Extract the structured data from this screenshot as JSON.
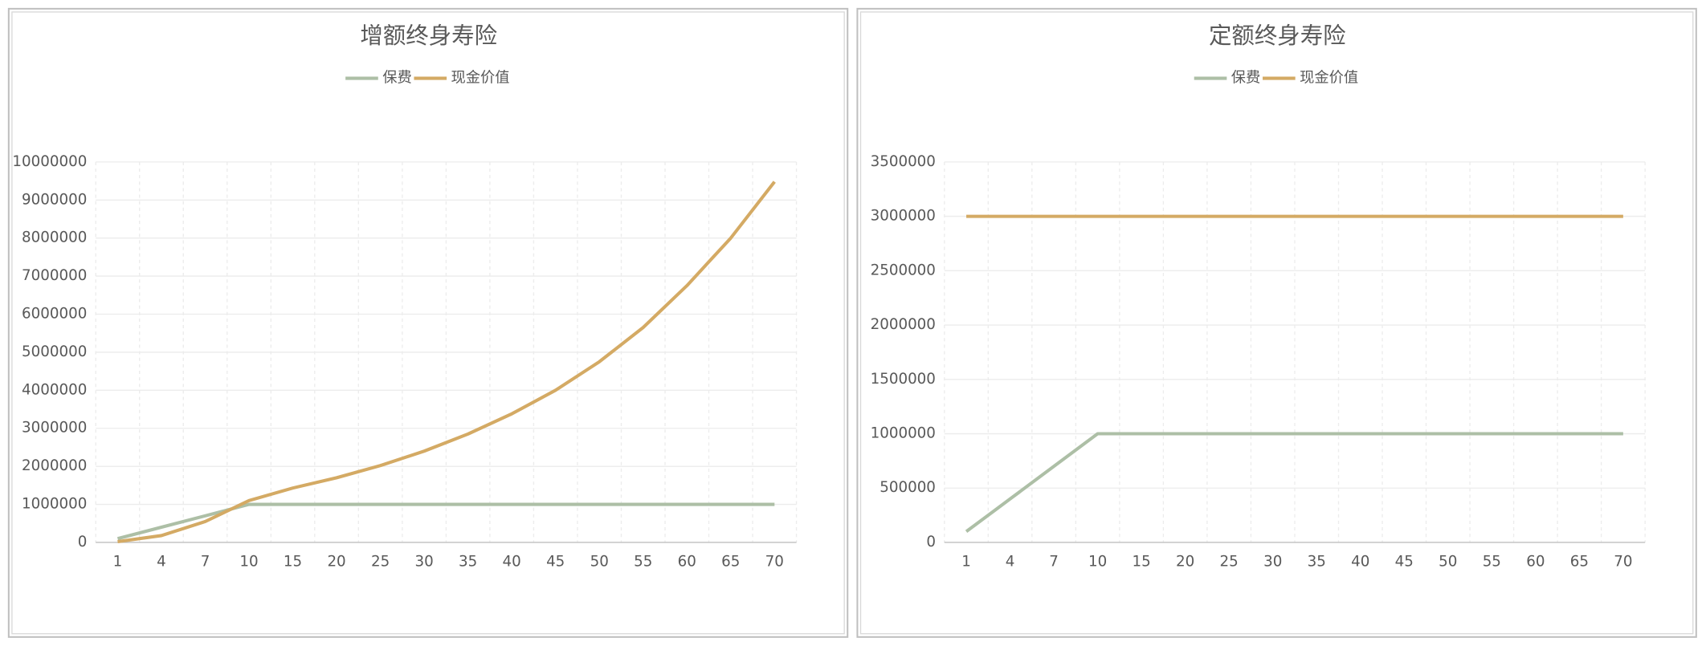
{
  "chart_data": [
    {
      "type": "line",
      "title": "增额终身寿险",
      "categories": [
        "1",
        "4",
        "7",
        "10",
        "15",
        "20",
        "25",
        "30",
        "35",
        "40",
        "45",
        "50",
        "55",
        "60",
        "65",
        "70"
      ],
      "series": [
        {
          "name": "保费",
          "color": "#adbfa6",
          "values": [
            100000,
            400000,
            700000,
            1000000,
            1000000,
            1000000,
            1000000,
            1000000,
            1000000,
            1000000,
            1000000,
            1000000,
            1000000,
            1000000,
            1000000,
            1000000
          ]
        },
        {
          "name": "现金价值",
          "color": "#d4aa64",
          "values": [
            20000,
            180000,
            550000,
            1100000,
            1430000,
            1700000,
            2020000,
            2400000,
            2850000,
            3380000,
            4000000,
            4750000,
            5650000,
            6750000,
            8000000,
            9480000
          ]
        }
      ],
      "ylim": [
        0,
        10000000
      ],
      "yticks": [
        0,
        1000000,
        2000000,
        3000000,
        4000000,
        5000000,
        6000000,
        7000000,
        8000000,
        9000000,
        10000000
      ],
      "grid": true
    },
    {
      "type": "line",
      "title": "定额终身寿险",
      "categories": [
        "1",
        "4",
        "7",
        "10",
        "15",
        "20",
        "25",
        "30",
        "35",
        "40",
        "45",
        "50",
        "55",
        "60",
        "65",
        "70"
      ],
      "series": [
        {
          "name": "保费",
          "color": "#adbfa6",
          "values": [
            100000,
            400000,
            700000,
            1000000,
            1000000,
            1000000,
            1000000,
            1000000,
            1000000,
            1000000,
            1000000,
            1000000,
            1000000,
            1000000,
            1000000,
            1000000
          ]
        },
        {
          "name": "现金价值",
          "color": "#d4aa64",
          "values": [
            3000000,
            3000000,
            3000000,
            3000000,
            3000000,
            3000000,
            3000000,
            3000000,
            3000000,
            3000000,
            3000000,
            3000000,
            3000000,
            3000000,
            3000000,
            3000000
          ]
        }
      ],
      "ylim": [
        0,
        3500000
      ],
      "yticks": [
        0,
        500000,
        1000000,
        1500000,
        2000000,
        2500000,
        3000000,
        3500000
      ],
      "grid": true
    }
  ]
}
